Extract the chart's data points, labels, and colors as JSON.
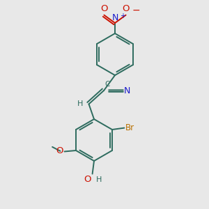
{
  "background_color": "#e8e8e8",
  "bond_color": "#2d6b5e",
  "N_color": "#1a1acc",
  "O_color": "#cc1100",
  "Br_color": "#b87000",
  "figsize": [
    3.0,
    3.0
  ],
  "dpi": 100,
  "xlim": [
    0,
    10
  ],
  "ylim": [
    0,
    10
  ]
}
